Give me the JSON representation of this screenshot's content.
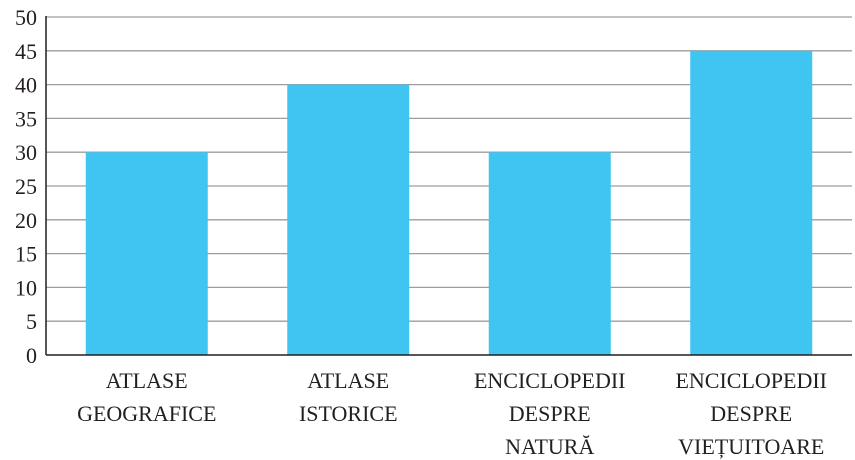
{
  "chart_data": {
    "type": "bar",
    "title": "",
    "xlabel": "",
    "ylabel": "",
    "categories": [
      [
        "ATLASE",
        "GEOGRAFICE"
      ],
      [
        "ATLASE",
        "ISTORICE"
      ],
      [
        "ENCICLOPEDII",
        "DESPRE",
        "NATURĂ"
      ],
      [
        "ENCICLOPEDII",
        "DESPRE",
        "VIEȚUITOARE"
      ]
    ],
    "values": [
      30,
      40,
      30,
      45
    ],
    "ylim": [
      0,
      50
    ],
    "yticks": [
      "0",
      "5",
      "10",
      "15",
      "20",
      "25",
      "30",
      "35",
      "40",
      "45",
      "50"
    ],
    "grid": true,
    "bar_color": "#40c4f1",
    "grid_color": "#9d9d9d",
    "axis_color": "#231f20"
  }
}
